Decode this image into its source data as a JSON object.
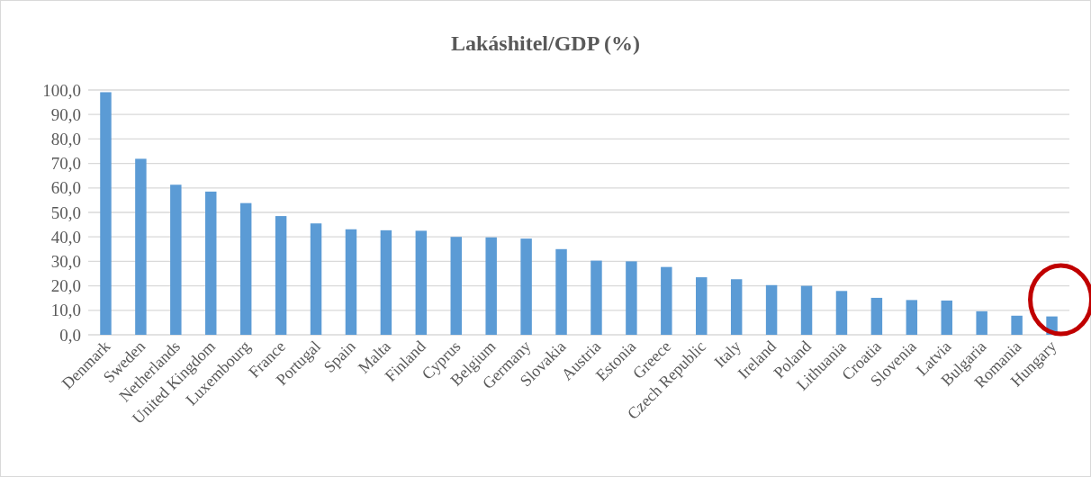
{
  "chart_data": {
    "type": "bar",
    "title": "Lakáshitel/GDP (%)",
    "categories": [
      "Denmark",
      "Sweden",
      "Netherlands",
      "United Kingdom",
      "Luxembourg",
      "France",
      "Portugal",
      "Spain",
      "Malta",
      "Finland",
      "Cyprus",
      "Belgium",
      "Germany",
      "Slovakia",
      "Austria",
      "Estonia",
      "Greece",
      "Czech Republic",
      "Italy",
      "Ireland",
      "Poland",
      "Lithuania",
      "Croatia",
      "Slovenia",
      "Latvia",
      "Bulgaria",
      "Romania",
      "Hungary"
    ],
    "values": [
      99.1,
      71.9,
      61.3,
      58.5,
      53.8,
      48.5,
      45.5,
      43.1,
      42.7,
      42.5,
      40.0,
      39.8,
      39.3,
      35.0,
      30.3,
      30.0,
      27.7,
      23.5,
      22.7,
      20.3,
      20.0,
      17.9,
      15.1,
      14.2,
      14.0,
      9.6,
      7.8,
      7.5
    ],
    "color": "#5b9bd5",
    "ylim": [
      0,
      100
    ],
    "yticks": [
      {
        "value": 0,
        "label": "0,0"
      },
      {
        "value": 10,
        "label": "10,0"
      },
      {
        "value": 20,
        "label": "20,0"
      },
      {
        "value": 30,
        "label": "30,0"
      },
      {
        "value": 40,
        "label": "40,0"
      },
      {
        "value": 50,
        "label": "50,0"
      },
      {
        "value": 60,
        "label": "60,0"
      },
      {
        "value": 70,
        "label": "70,0"
      },
      {
        "value": 80,
        "label": "80,0"
      },
      {
        "value": 90,
        "label": "90,0"
      },
      {
        "value": 100,
        "label": "100,0"
      }
    ],
    "grid": "y"
  }
}
